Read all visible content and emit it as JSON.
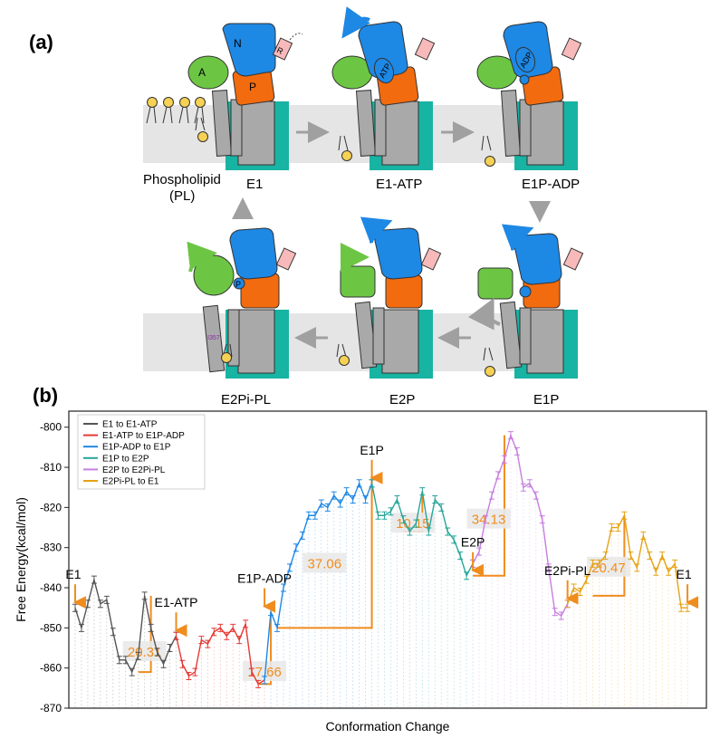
{
  "panel_a": {
    "label": "(a)",
    "states": [
      {
        "name": "E1"
      },
      {
        "name": "E1-ATP"
      },
      {
        "name": "E1P-ADP"
      },
      {
        "name": "E1P"
      },
      {
        "name": "E2P"
      },
      {
        "name": "E2Pi-PL"
      }
    ],
    "phospholipid_label": "Phospholipid",
    "phospholipid_abbrev": "(PL)",
    "domain_labels": {
      "N": "N",
      "A": "A",
      "P": "P",
      "R": "R"
    },
    "ligands": {
      "atp": "ATP",
      "adp": "ADP"
    },
    "residue_label": "I357",
    "colors": {
      "N": "#1e88e5",
      "A": "#6cc644",
      "P": "#f26b0e",
      "R": "#f7b9b9",
      "tm": "#a9a9a9",
      "tm_frame": "#17b3a3",
      "membrane": "#e5e5e5",
      "lipid_head": "#f7d154",
      "arrow": "#a0a0a0"
    }
  },
  "panel_b": {
    "label": "(b)"
  },
  "chart_data": {
    "type": "line",
    "xlabel": "Conformation Change",
    "ylabel": "Free Energy(kcal/mol)",
    "ylim": [
      -870,
      -796
    ],
    "yticks": [
      -870,
      -860,
      -850,
      -840,
      -830,
      -820,
      -810,
      -800
    ],
    "xlim": [
      0,
      101
    ],
    "grid": "vertical dotted",
    "legend_position": "top-left",
    "series": [
      {
        "name": "E1 to E1-ATP",
        "color": "#555555",
        "x": [
          1,
          2,
          3,
          4,
          5,
          6,
          7,
          8,
          9,
          10,
          11,
          12,
          13,
          14,
          15,
          16,
          17
        ],
        "y": [
          -845,
          -850,
          -844,
          -838,
          -844,
          -843,
          -851,
          -858,
          -858,
          -861,
          -857,
          -842,
          -850,
          -856,
          -859,
          -855,
          -852
        ]
      },
      {
        "name": "E1-ATP to E1P-ADP",
        "color": "#e53935",
        "x": [
          17,
          18,
          19,
          20,
          21,
          22,
          23,
          24,
          25,
          26,
          27,
          28,
          29,
          30,
          31
        ],
        "y": [
          -852,
          -859,
          -862,
          -861,
          -853,
          -854,
          -851,
          -850,
          -852,
          -850,
          -853,
          -849,
          -861,
          -864,
          -863
        ]
      },
      {
        "name": "E1P-ADP to E1P",
        "color": "#1e88e5",
        "x": [
          31,
          32,
          33,
          34,
          35,
          36,
          37,
          38,
          39,
          40,
          41,
          42,
          43,
          44,
          45,
          46,
          47,
          48
        ],
        "y": [
          -863,
          -846,
          -850,
          -840,
          -835,
          -830,
          -827,
          -822,
          -822,
          -819,
          -820,
          -817,
          -819,
          -816,
          -818,
          -814,
          -818,
          -814
        ]
      },
      {
        "name": "E1P to E2P",
        "color": "#26a69a",
        "x": [
          48,
          49,
          50,
          51,
          52,
          53,
          54,
          55,
          56,
          57,
          58,
          59,
          60,
          61,
          62,
          63,
          64
        ],
        "y": [
          -814,
          -822,
          -822,
          -821,
          -818,
          -823,
          -826,
          -824,
          -816,
          -826,
          -818,
          -820,
          -826,
          -828,
          -832,
          -837,
          -834
        ]
      },
      {
        "name": "E2P to E2Pi-PL",
        "color": "#c77ee0",
        "x": [
          64,
          65,
          66,
          67,
          68,
          69,
          70,
          71,
          72,
          73,
          74,
          75,
          76,
          77,
          78,
          79
        ],
        "y": [
          -834,
          -831,
          -823,
          -817,
          -812,
          -808,
          -802,
          -806,
          -815,
          -814,
          -817,
          -823,
          -835,
          -846,
          -847,
          -844
        ]
      },
      {
        "name": "E2Pi-PL to E1",
        "color": "#e6a215",
        "x": [
          79,
          80,
          81,
          82,
          83,
          84,
          85,
          86,
          87,
          88,
          89,
          90,
          91,
          92,
          93,
          94,
          95,
          96,
          97,
          98
        ],
        "y": [
          -844,
          -840,
          -841,
          -838,
          -834,
          -834,
          -832,
          -825,
          -825,
          -822,
          -832,
          -835,
          -827,
          -832,
          -836,
          -832,
          -836,
          -834,
          -845,
          -845
        ]
      }
    ],
    "state_annotations": [
      {
        "label": "E1",
        "x": 1,
        "y": -845
      },
      {
        "label": "E1-ATP",
        "x": 17,
        "y": -852
      },
      {
        "label": "E1P-ADP",
        "x": 31,
        "y": -846
      },
      {
        "label": "E1P",
        "x": 48,
        "y": -814
      },
      {
        "label": "E2P",
        "x": 64,
        "y": -837
      },
      {
        "label": "E2Pi-PL",
        "x": 79,
        "y": -844
      },
      {
        "label": "E1",
        "x": 98,
        "y": -845
      }
    ],
    "barriers": [
      {
        "value": "20.31",
        "x_left": 11,
        "x_right": 13,
        "y_low": -861,
        "y_high": -842,
        "label_y": -856
      },
      {
        "value": "17.66",
        "x_left": 30,
        "x_right": 32,
        "y_low": -864,
        "y_high": -846,
        "label_y": -861
      },
      {
        "value": "37.06",
        "x_left": 33,
        "x_right": 48,
        "y_low": -850,
        "y_high": -812,
        "label_y": -834
      },
      {
        "value": "10.15",
        "x_left": 53,
        "x_right": 56,
        "y_low": -826,
        "y_high": -816,
        "label_y": -824
      },
      {
        "value": "34.13",
        "x_left": 64,
        "x_right": 69,
        "y_low": -837,
        "y_high": -802,
        "label_y": -823
      },
      {
        "value": "20.47",
        "x_left": 83,
        "x_right": 88,
        "y_low": -842,
        "y_high": -822,
        "label_y": -835
      }
    ]
  }
}
